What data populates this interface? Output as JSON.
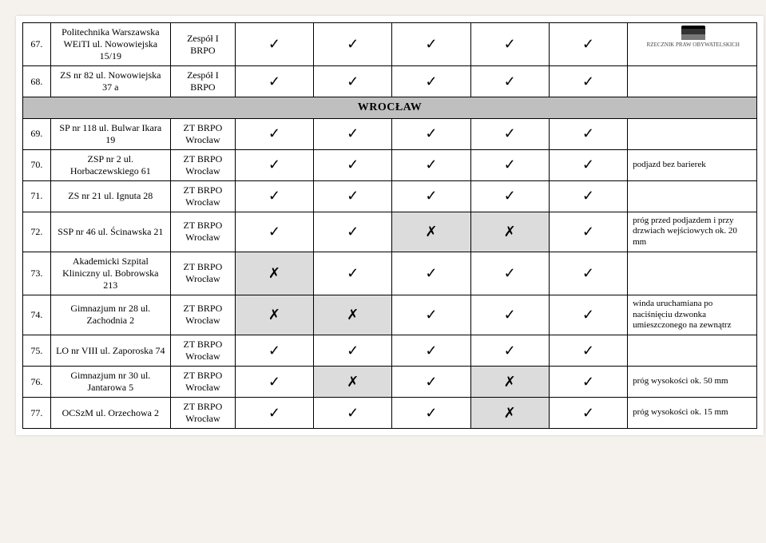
{
  "logo_caption": "RZECZNIK PRAW OBYWATELSKICH",
  "section_title": "WROCŁAW",
  "check": "✓",
  "cross": "✗",
  "top_rows": [
    {
      "num": "67.",
      "inst": "Politechnika Warszawska WEiTI ul. Nowowiejska 15/19",
      "team": "Zespół I BRPO",
      "cells": [
        "check",
        "check",
        "check",
        "check",
        "check"
      ],
      "note": ""
    },
    {
      "num": "68.",
      "inst": "ZS nr 82 ul. Nowowiejska 37 a",
      "team": "Zespół I BRPO",
      "cells": [
        "check",
        "check",
        "check",
        "check",
        "check"
      ],
      "note": ""
    }
  ],
  "bottom_rows": [
    {
      "num": "69.",
      "inst": "SP nr 118 ul. Bulwar Ikara 19",
      "team": "ZT BRPO Wrocław",
      "cells": [
        "check",
        "check",
        "check",
        "check",
        "check"
      ],
      "note": ""
    },
    {
      "num": "70.",
      "inst": "ZSP nr 2 ul. Horbaczewskiego 61",
      "team": "ZT BRPO Wrocław",
      "cells": [
        "check",
        "check",
        "check",
        "check",
        "check"
      ],
      "note": "podjazd bez barierek"
    },
    {
      "num": "71.",
      "inst": "ZS nr 21 ul. Ignuta 28",
      "team": "ZT BRPO Wrocław",
      "cells": [
        "check",
        "check",
        "check",
        "check",
        "check"
      ],
      "note": ""
    },
    {
      "num": "72.",
      "inst": "SSP nr 46 ul. Ścinawska 21",
      "team": "ZT BRPO Wrocław",
      "cells": [
        "check",
        "check",
        "cross-shaded",
        "cross-shaded",
        "check"
      ],
      "note": "próg przed podjazdem i przy drzwiach wejściowych ok. 20 mm"
    },
    {
      "num": "73.",
      "inst": "Akademicki Szpital Kliniczny ul. Bobrowska 213",
      "team": "ZT BRPO Wrocław",
      "cells": [
        "cross-shaded",
        "check",
        "check",
        "check",
        "check"
      ],
      "note": ""
    },
    {
      "num": "74.",
      "inst": "Gimnazjum nr 28 ul. Zachodnia 2",
      "team": "ZT BRPO Wrocław",
      "cells": [
        "cross-shaded",
        "cross-shaded",
        "check",
        "check",
        "check"
      ],
      "note": "winda uruchamiana po naciśnięciu dzwonka umieszczonego na zewnątrz"
    },
    {
      "num": "75.",
      "inst": "LO nr VIII ul. Zaporoska 74",
      "team": "ZT BRPO Wrocław",
      "cells": [
        "check",
        "check",
        "check",
        "check",
        "check"
      ],
      "note": ""
    },
    {
      "num": "76.",
      "inst": "Gimnazjum nr 30 ul. Jantarowa 5",
      "team": "ZT BRPO Wrocław",
      "cells": [
        "check",
        "cross-shaded",
        "check",
        "cross-shaded",
        "check"
      ],
      "note": "próg wysokości ok. 50 mm"
    },
    {
      "num": "77.",
      "inst": "OCSzM ul. Orzechowa 2",
      "team": "ZT BRPO Wrocław",
      "cells": [
        "check",
        "check",
        "check",
        "cross-shaded",
        "check"
      ],
      "note": "próg wysokości ok. 15 mm"
    }
  ]
}
